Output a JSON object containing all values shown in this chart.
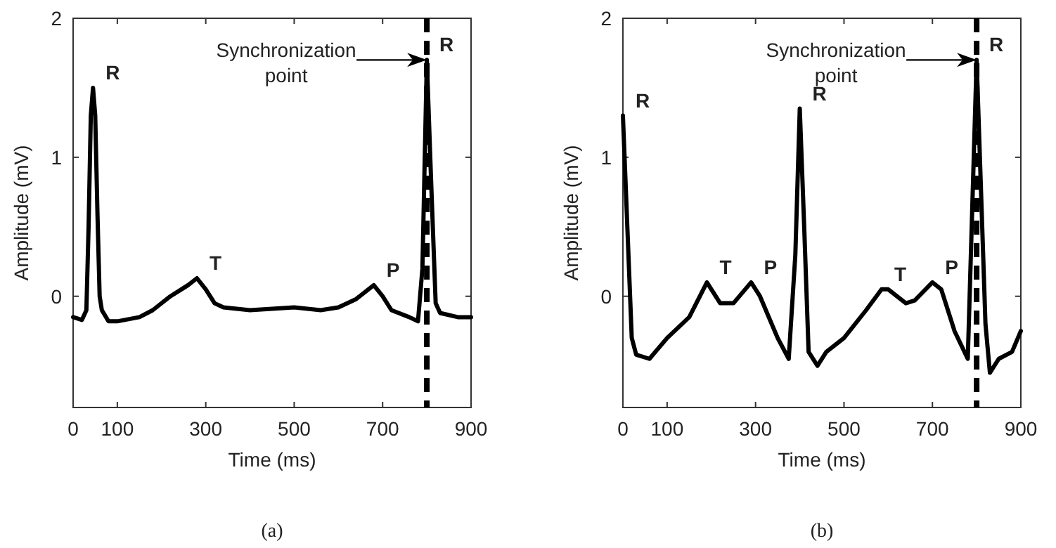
{
  "chart_data": [
    {
      "type": "line",
      "title": "(a)",
      "xlabel": "Time (ms)",
      "ylabel": "Amplitude (mV)",
      "xlim": [
        0,
        900
      ],
      "xticks": [
        0,
        100,
        300,
        500,
        700,
        900
      ],
      "ylim": [
        -0.8,
        2
      ],
      "yticks": [
        0,
        1,
        2
      ],
      "grid": false,
      "series": [
        {
          "color": "#000000",
          "x": [
            0,
            20,
            30,
            35,
            40,
            45,
            50,
            55,
            60,
            65,
            80,
            100,
            150,
            180,
            220,
            260,
            280,
            300,
            320,
            340,
            400,
            500,
            560,
            600,
            640,
            680,
            700,
            720,
            760,
            780,
            790,
            800,
            810,
            820,
            830,
            870,
            900
          ],
          "values": [
            -0.15,
            -0.17,
            -0.1,
            0.5,
            1.3,
            1.5,
            1.3,
            0.6,
            0.0,
            -0.1,
            -0.18,
            -0.18,
            -0.15,
            -0.1,
            0.0,
            0.08,
            0.13,
            0.05,
            -0.05,
            -0.08,
            -0.1,
            -0.08,
            -0.1,
            -0.08,
            -0.02,
            0.08,
            0.0,
            -0.1,
            -0.15,
            -0.18,
            0.2,
            1.7,
            0.8,
            -0.05,
            -0.12,
            -0.15,
            -0.15
          ]
        }
      ],
      "ref_lines": [
        {
          "axis": "x",
          "value": 800,
          "color": "#000000",
          "line_style": "dashed"
        }
      ],
      "annotations": [
        {
          "text": "R",
          "x": 45,
          "y": 1.5
        },
        {
          "text": "T",
          "x": 280,
          "y": 0.13
        },
        {
          "text": "P",
          "x": 680,
          "y": 0.08
        },
        {
          "text": "R",
          "x": 800,
          "y": 1.7
        },
        "Synchronization point"
      ]
    },
    {
      "type": "line",
      "title": "(b)",
      "xlabel": "Time (ms)",
      "ylabel": "Amplitude (mV)",
      "xlim": [
        0,
        900
      ],
      "xticks": [
        0,
        100,
        300,
        500,
        700,
        900
      ],
      "ylim": [
        -0.8,
        2
      ],
      "yticks": [
        0,
        1,
        2
      ],
      "grid": false,
      "series": [
        {
          "color": "#000000",
          "x": [
            0,
            10,
            20,
            30,
            60,
            100,
            150,
            190,
            200,
            220,
            250,
            290,
            310,
            350,
            375,
            390,
            400,
            410,
            420,
            440,
            460,
            500,
            550,
            585,
            600,
            640,
            660,
            700,
            720,
            750,
            780,
            800,
            820,
            830,
            850,
            880,
            900
          ],
          "values": [
            1.3,
            0.5,
            -0.3,
            -0.42,
            -0.45,
            -0.3,
            -0.15,
            0.1,
            0.05,
            -0.05,
            -0.05,
            0.1,
            0.0,
            -0.3,
            -0.45,
            0.3,
            1.35,
            0.5,
            -0.4,
            -0.5,
            -0.4,
            -0.3,
            -0.1,
            0.05,
            0.05,
            -0.05,
            -0.03,
            0.1,
            0.05,
            -0.25,
            -0.45,
            1.7,
            -0.2,
            -0.55,
            -0.45,
            -0.4,
            -0.25
          ]
        }
      ],
      "ref_lines": [
        {
          "axis": "x",
          "value": 800,
          "color": "#000000",
          "line_style": "dashed"
        }
      ],
      "annotations": [
        {
          "text": "R",
          "x": 0,
          "y": 1.3
        },
        {
          "text": "T",
          "x": 190,
          "y": 0.1
        },
        {
          "text": "P",
          "x": 290,
          "y": 0.1
        },
        {
          "text": "R",
          "x": 400,
          "y": 1.35
        },
        {
          "text": "T",
          "x": 585,
          "y": 0.05
        },
        {
          "text": "P",
          "x": 700,
          "y": 0.1
        },
        {
          "text": "R",
          "x": 800,
          "y": 1.7
        },
        "Synchronization point"
      ]
    }
  ]
}
